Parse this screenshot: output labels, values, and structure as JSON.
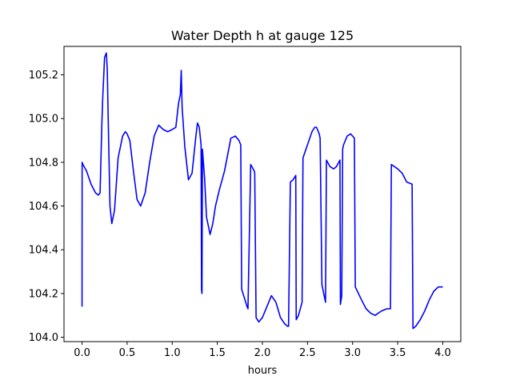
{
  "chart_data": {
    "type": "line",
    "title": "Water Depth h at gauge 125",
    "xlabel": "hours",
    "ylabel": "",
    "xlim": [
      -0.2,
      4.2
    ],
    "ylim": [
      103.98,
      105.33
    ],
    "xticks": [
      0.0,
      0.5,
      1.0,
      1.5,
      2.0,
      2.5,
      3.0,
      3.5,
      4.0
    ],
    "xtick_labels": [
      "0.0",
      "0.5",
      "1.0",
      "1.5",
      "2.0",
      "2.5",
      "3.0",
      "3.5",
      "4.0"
    ],
    "yticks": [
      104.0,
      104.2,
      104.4,
      104.6,
      104.8,
      105.0,
      105.2
    ],
    "ytick_labels": [
      "104.0",
      "104.2",
      "104.4",
      "104.6",
      "104.8",
      "105.0",
      "105.2"
    ],
    "grid": false,
    "legend": "none",
    "series": [
      {
        "color": "#0000ff",
        "x": [
          0.0,
          0.001,
          0.01,
          0.05,
          0.1,
          0.15,
          0.18,
          0.2,
          0.21,
          0.22,
          0.23,
          0.25,
          0.27,
          0.28,
          0.29,
          0.31,
          0.33,
          0.36,
          0.4,
          0.45,
          0.48,
          0.5,
          0.53,
          0.57,
          0.61,
          0.65,
          0.7,
          0.75,
          0.8,
          0.85,
          0.9,
          0.95,
          1.0,
          1.04,
          1.07,
          1.09,
          1.1,
          1.11,
          1.14,
          1.18,
          1.22,
          1.26,
          1.28,
          1.3,
          1.32,
          1.325,
          1.33,
          1.335,
          1.36,
          1.38,
          1.42,
          1.45,
          1.48,
          1.52,
          1.58,
          1.65,
          1.7,
          1.74,
          1.76,
          1.77,
          1.8,
          1.83,
          1.84,
          1.87,
          1.91,
          1.915,
          1.93,
          1.96,
          2.0,
          2.05,
          2.1,
          2.15,
          2.2,
          2.25,
          2.28,
          2.29,
          2.31,
          2.34,
          2.37,
          2.375,
          2.4,
          2.44,
          2.45,
          2.5,
          2.55,
          2.58,
          2.6,
          2.63,
          2.64,
          2.66,
          2.69,
          2.7,
          2.71,
          2.75,
          2.79,
          2.82,
          2.86,
          2.865,
          2.88,
          2.89,
          2.9,
          2.94,
          2.98,
          3.02,
          3.03,
          3.1,
          3.15,
          3.2,
          3.25,
          3.32,
          3.38,
          3.42,
          3.43,
          3.5,
          3.55,
          3.6,
          3.66,
          3.67,
          3.7,
          3.75,
          3.8,
          3.85,
          3.9,
          3.95,
          4.0
        ],
        "values": [
          104.14,
          104.8,
          104.79,
          104.76,
          104.7,
          104.66,
          104.65,
          104.66,
          104.82,
          104.98,
          105.1,
          105.28,
          105.3,
          105.22,
          105.0,
          104.6,
          104.52,
          104.58,
          104.82,
          104.92,
          104.94,
          104.93,
          104.9,
          104.76,
          104.63,
          104.6,
          104.66,
          104.8,
          104.92,
          104.97,
          104.95,
          104.94,
          104.95,
          104.96,
          105.07,
          105.11,
          105.22,
          105.05,
          104.87,
          104.72,
          104.75,
          104.91,
          104.98,
          104.96,
          104.88,
          104.22,
          104.2,
          104.86,
          104.72,
          104.55,
          104.47,
          104.52,
          104.6,
          104.67,
          104.76,
          104.91,
          104.92,
          104.9,
          104.88,
          104.22,
          104.18,
          104.14,
          104.13,
          104.79,
          104.76,
          104.75,
          104.09,
          104.07,
          104.09,
          104.14,
          104.19,
          104.16,
          104.09,
          104.06,
          104.05,
          104.05,
          104.71,
          104.72,
          104.74,
          104.08,
          104.1,
          104.16,
          104.82,
          104.88,
          104.94,
          104.96,
          104.96,
          104.93,
          104.91,
          104.24,
          104.18,
          104.16,
          104.81,
          104.78,
          104.77,
          104.78,
          104.81,
          104.15,
          104.19,
          104.86,
          104.88,
          104.92,
          104.93,
          104.91,
          104.23,
          104.17,
          104.13,
          104.11,
          104.1,
          104.12,
          104.13,
          104.13,
          104.79,
          104.77,
          104.75,
          104.71,
          104.7,
          104.04,
          104.05,
          104.08,
          104.12,
          104.17,
          104.21,
          104.23,
          104.23
        ]
      }
    ]
  }
}
